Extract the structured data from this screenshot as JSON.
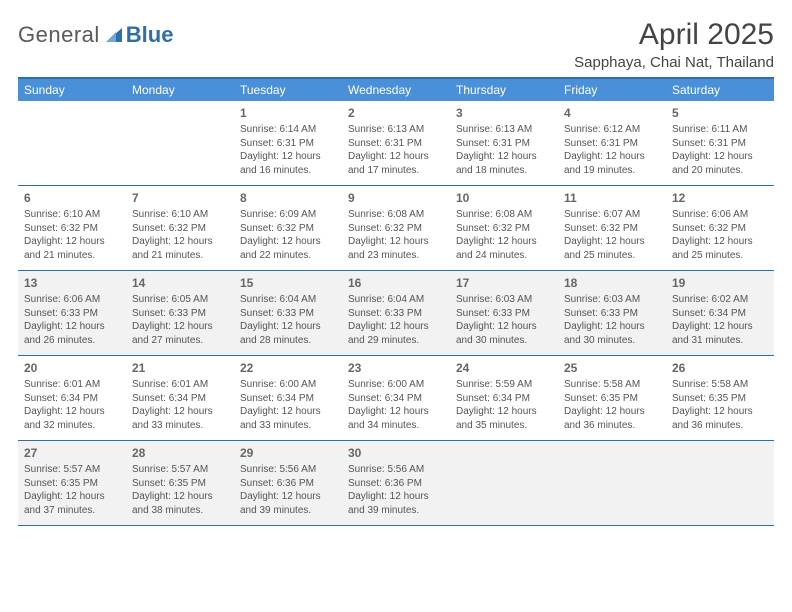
{
  "logo": {
    "text_general": "General",
    "text_blue": "Blue"
  },
  "title": "April 2025",
  "location": "Sapphaya, Chai Nat, Thailand",
  "colors": {
    "header_bar": "#4a90d9",
    "border": "#2f6fa7",
    "shaded_bg": "#f2f2f2",
    "text": "#555555",
    "day_number": "#666666"
  },
  "weekdays": [
    "Sunday",
    "Monday",
    "Tuesday",
    "Wednesday",
    "Thursday",
    "Friday",
    "Saturday"
  ],
  "weeks": [
    {
      "shaded": false,
      "days": [
        null,
        null,
        {
          "n": "1",
          "sunrise": "Sunrise: 6:14 AM",
          "sunset": "Sunset: 6:31 PM",
          "daylight": "Daylight: 12 hours and 16 minutes."
        },
        {
          "n": "2",
          "sunrise": "Sunrise: 6:13 AM",
          "sunset": "Sunset: 6:31 PM",
          "daylight": "Daylight: 12 hours and 17 minutes."
        },
        {
          "n": "3",
          "sunrise": "Sunrise: 6:13 AM",
          "sunset": "Sunset: 6:31 PM",
          "daylight": "Daylight: 12 hours and 18 minutes."
        },
        {
          "n": "4",
          "sunrise": "Sunrise: 6:12 AM",
          "sunset": "Sunset: 6:31 PM",
          "daylight": "Daylight: 12 hours and 19 minutes."
        },
        {
          "n": "5",
          "sunrise": "Sunrise: 6:11 AM",
          "sunset": "Sunset: 6:31 PM",
          "daylight": "Daylight: 12 hours and 20 minutes."
        }
      ]
    },
    {
      "shaded": false,
      "days": [
        {
          "n": "6",
          "sunrise": "Sunrise: 6:10 AM",
          "sunset": "Sunset: 6:32 PM",
          "daylight": "Daylight: 12 hours and 21 minutes."
        },
        {
          "n": "7",
          "sunrise": "Sunrise: 6:10 AM",
          "sunset": "Sunset: 6:32 PM",
          "daylight": "Daylight: 12 hours and 21 minutes."
        },
        {
          "n": "8",
          "sunrise": "Sunrise: 6:09 AM",
          "sunset": "Sunset: 6:32 PM",
          "daylight": "Daylight: 12 hours and 22 minutes."
        },
        {
          "n": "9",
          "sunrise": "Sunrise: 6:08 AM",
          "sunset": "Sunset: 6:32 PM",
          "daylight": "Daylight: 12 hours and 23 minutes."
        },
        {
          "n": "10",
          "sunrise": "Sunrise: 6:08 AM",
          "sunset": "Sunset: 6:32 PM",
          "daylight": "Daylight: 12 hours and 24 minutes."
        },
        {
          "n": "11",
          "sunrise": "Sunrise: 6:07 AM",
          "sunset": "Sunset: 6:32 PM",
          "daylight": "Daylight: 12 hours and 25 minutes."
        },
        {
          "n": "12",
          "sunrise": "Sunrise: 6:06 AM",
          "sunset": "Sunset: 6:32 PM",
          "daylight": "Daylight: 12 hours and 25 minutes."
        }
      ]
    },
    {
      "shaded": true,
      "days": [
        {
          "n": "13",
          "sunrise": "Sunrise: 6:06 AM",
          "sunset": "Sunset: 6:33 PM",
          "daylight": "Daylight: 12 hours and 26 minutes."
        },
        {
          "n": "14",
          "sunrise": "Sunrise: 6:05 AM",
          "sunset": "Sunset: 6:33 PM",
          "daylight": "Daylight: 12 hours and 27 minutes."
        },
        {
          "n": "15",
          "sunrise": "Sunrise: 6:04 AM",
          "sunset": "Sunset: 6:33 PM",
          "daylight": "Daylight: 12 hours and 28 minutes."
        },
        {
          "n": "16",
          "sunrise": "Sunrise: 6:04 AM",
          "sunset": "Sunset: 6:33 PM",
          "daylight": "Daylight: 12 hours and 29 minutes."
        },
        {
          "n": "17",
          "sunrise": "Sunrise: 6:03 AM",
          "sunset": "Sunset: 6:33 PM",
          "daylight": "Daylight: 12 hours and 30 minutes."
        },
        {
          "n": "18",
          "sunrise": "Sunrise: 6:03 AM",
          "sunset": "Sunset: 6:33 PM",
          "daylight": "Daylight: 12 hours and 30 minutes."
        },
        {
          "n": "19",
          "sunrise": "Sunrise: 6:02 AM",
          "sunset": "Sunset: 6:34 PM",
          "daylight": "Daylight: 12 hours and 31 minutes."
        }
      ]
    },
    {
      "shaded": false,
      "days": [
        {
          "n": "20",
          "sunrise": "Sunrise: 6:01 AM",
          "sunset": "Sunset: 6:34 PM",
          "daylight": "Daylight: 12 hours and 32 minutes."
        },
        {
          "n": "21",
          "sunrise": "Sunrise: 6:01 AM",
          "sunset": "Sunset: 6:34 PM",
          "daylight": "Daylight: 12 hours and 33 minutes."
        },
        {
          "n": "22",
          "sunrise": "Sunrise: 6:00 AM",
          "sunset": "Sunset: 6:34 PM",
          "daylight": "Daylight: 12 hours and 33 minutes."
        },
        {
          "n": "23",
          "sunrise": "Sunrise: 6:00 AM",
          "sunset": "Sunset: 6:34 PM",
          "daylight": "Daylight: 12 hours and 34 minutes."
        },
        {
          "n": "24",
          "sunrise": "Sunrise: 5:59 AM",
          "sunset": "Sunset: 6:34 PM",
          "daylight": "Daylight: 12 hours and 35 minutes."
        },
        {
          "n": "25",
          "sunrise": "Sunrise: 5:58 AM",
          "sunset": "Sunset: 6:35 PM",
          "daylight": "Daylight: 12 hours and 36 minutes."
        },
        {
          "n": "26",
          "sunrise": "Sunrise: 5:58 AM",
          "sunset": "Sunset: 6:35 PM",
          "daylight": "Daylight: 12 hours and 36 minutes."
        }
      ]
    },
    {
      "shaded": true,
      "days": [
        {
          "n": "27",
          "sunrise": "Sunrise: 5:57 AM",
          "sunset": "Sunset: 6:35 PM",
          "daylight": "Daylight: 12 hours and 37 minutes."
        },
        {
          "n": "28",
          "sunrise": "Sunrise: 5:57 AM",
          "sunset": "Sunset: 6:35 PM",
          "daylight": "Daylight: 12 hours and 38 minutes."
        },
        {
          "n": "29",
          "sunrise": "Sunrise: 5:56 AM",
          "sunset": "Sunset: 6:36 PM",
          "daylight": "Daylight: 12 hours and 39 minutes."
        },
        {
          "n": "30",
          "sunrise": "Sunrise: 5:56 AM",
          "sunset": "Sunset: 6:36 PM",
          "daylight": "Daylight: 12 hours and 39 minutes."
        },
        null,
        null,
        null
      ]
    }
  ]
}
